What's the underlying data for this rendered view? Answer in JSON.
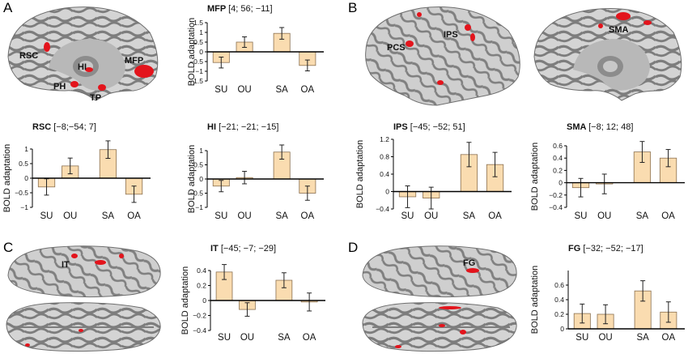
{
  "panel_labels": [
    "A",
    "B",
    "C",
    "D"
  ],
  "colors": {
    "bar_fill": "#fadcb0",
    "bar_stroke": "#8a7050",
    "sulci": "#7d7d7d",
    "gyri": "#d4d4d4",
    "medial_wall": "#b8b8b8",
    "activation": "#e3141c"
  },
  "brain_labels": {
    "rsc": "RSC",
    "hi": "HI",
    "ph": "PH",
    "tp": "TP",
    "mfp": "MFP",
    "pcs": "PCS",
    "ips": "IPS",
    "sma": "SMA",
    "it": "IT",
    "fg": "FG"
  },
  "chart_data": [
    {
      "type": "bar",
      "title_bold": "MFP",
      "title_coords": "[4; 56; −11]",
      "ylabel": "BOLD adaptation",
      "categories": [
        "SU",
        "OU",
        "SA",
        "OA"
      ],
      "values": [
        -0.55,
        0.5,
        0.95,
        -0.7
      ],
      "errors": [
        0.28,
        0.27,
        0.3,
        0.28
      ],
      "ylim": [
        -1.5,
        1.5
      ],
      "yticks": [
        1.5,
        1,
        0.5,
        0,
        -0.5,
        -1,
        -1.5
      ],
      "ytick_labels": [
        "1.5",
        "1",
        "0.5",
        "0",
        "−0.5",
        "−1",
        "−1.5"
      ]
    },
    {
      "type": "bar",
      "title_bold": "RSC",
      "title_coords": "[−8;−54; 7]",
      "ylabel": "BOLD adaptation",
      "categories": [
        "SU",
        "OU",
        "SA",
        "OA"
      ],
      "values": [
        -0.3,
        0.42,
        0.98,
        -0.55
      ],
      "errors": [
        0.28,
        0.27,
        0.3,
        0.28
      ],
      "ylim": [
        -1,
        1
      ],
      "yticks": [
        1,
        0.5,
        0,
        -0.5,
        -1
      ],
      "ytick_labels": [
        "1",
        "0.5",
        "0",
        "−0.5",
        "−1"
      ]
    },
    {
      "type": "bar",
      "title_bold": "HI",
      "title_coords": "[−21; −21; −15]",
      "ylabel": "BOLD adaptation",
      "categories": [
        "SU",
        "OU",
        "SA",
        "OA"
      ],
      "values": [
        -0.25,
        0.05,
        0.95,
        -0.5
      ],
      "errors": [
        0.2,
        0.22,
        0.25,
        0.25
      ],
      "ylim": [
        -1,
        1
      ],
      "yticks": [
        1,
        0.5,
        0,
        -0.5,
        -1
      ],
      "ytick_labels": [
        "1",
        "0.5",
        "0",
        "−0.5",
        "−1"
      ]
    },
    {
      "type": "bar",
      "title_bold": "IPS",
      "title_coords": "[−45; −52; 51]",
      "ylabel": "BOLD adaptation",
      "categories": [
        "SU",
        "OU",
        "SA",
        "OA"
      ],
      "values": [
        -0.12,
        -0.15,
        0.85,
        0.62
      ],
      "errors": [
        0.25,
        0.25,
        0.28,
        0.28
      ],
      "ylim": [
        -0.4,
        1.2
      ],
      "yticks": [
        1.2,
        0.8,
        0.4,
        0,
        -0.4
      ],
      "ytick_labels": [
        "1.2",
        "0.8",
        "0.4",
        "0",
        "−0.4"
      ]
    },
    {
      "type": "bar",
      "title_bold": "SMA",
      "title_coords": "[−8; 12; 48]",
      "ylabel": "BOLD adaptation",
      "categories": [
        "SU",
        "OU",
        "SA",
        "OA"
      ],
      "values": [
        -0.08,
        -0.02,
        0.5,
        0.4
      ],
      "errors": [
        0.15,
        0.16,
        0.17,
        0.14
      ],
      "ylim": [
        -0.4,
        0.6
      ],
      "yticks": [
        0.6,
        0.4,
        0.2,
        0,
        -0.2,
        -0.4
      ],
      "ytick_labels": [
        "0.6",
        "0.4",
        "0.2",
        "0",
        "−0.2",
        "−0.4"
      ]
    },
    {
      "type": "bar",
      "title_bold": "IT",
      "title_coords": "[−45; −7; −29]",
      "ylabel": "BOLD adaptation",
      "categories": [
        "SU",
        "OU",
        "SA",
        "OA"
      ],
      "values": [
        0.38,
        -0.12,
        0.27,
        -0.02
      ],
      "errors": [
        0.1,
        0.09,
        0.1,
        0.12
      ],
      "ylim": [
        -0.4,
        0.4
      ],
      "yticks": [
        0.4,
        0.2,
        0,
        -0.2,
        -0.4
      ],
      "ytick_labels": [
        "0.4",
        "0.2",
        "0",
        "−0.2",
        "−0.4"
      ]
    },
    {
      "type": "bar",
      "title_bold": "FG",
      "title_coords": "[−32; −52; −17]",
      "ylabel": "BOLD adaptation",
      "categories": [
        "SU",
        "OU",
        "SA",
        "OA"
      ],
      "values": [
        0.21,
        0.2,
        0.52,
        0.23
      ],
      "errors": [
        0.13,
        0.13,
        0.14,
        0.14
      ],
      "ylim": [
        0,
        0.8
      ],
      "yticks": [
        0.6,
        0.4,
        0.2,
        0
      ],
      "ytick_labels": [
        "0.6",
        "0.4",
        "0.2",
        "0"
      ]
    }
  ]
}
